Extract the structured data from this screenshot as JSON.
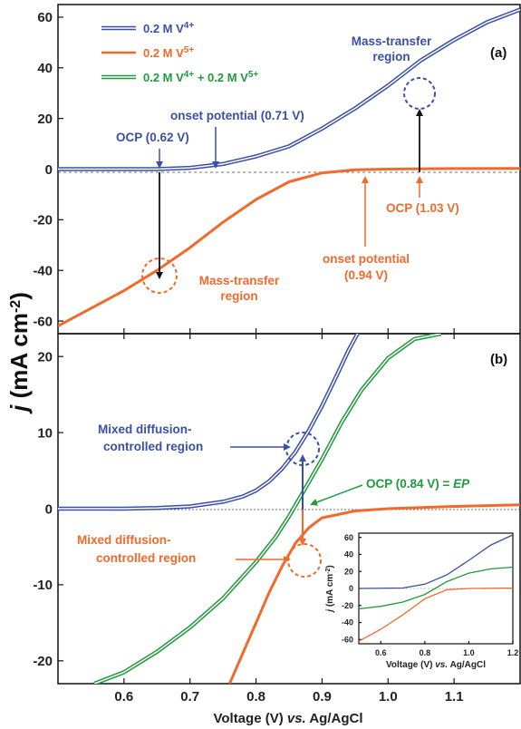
{
  "colors": {
    "v4": "#3a4fa8",
    "v5": "#f06a2c",
    "mix": "#1f9a3c",
    "axis": "#111111",
    "arrow": "#111111"
  },
  "y_axis_label_j": "j",
  "y_axis_label_unit": " (mA cm",
  "y_axis_label_exp": "-2",
  "y_axis_label_close": ")",
  "x_axis_label_pre": "Voltage (V) ",
  "x_axis_label_vs": "vs.",
  "x_axis_label_post": " Ag/AgCl",
  "legend": [
    {
      "label": "0.2 M V",
      "sup": "4+",
      "color": "v4"
    },
    {
      "label": "0.2 M V",
      "sup": "5+",
      "color": "v5"
    },
    {
      "label": "0.2 M V",
      "sup": "4+",
      "mid": " + 0.2 M V",
      "sup2": "5+",
      "color": "mix"
    }
  ],
  "annotations_a": {
    "panel": "(a)",
    "mass_transfer_top_1": "Mass-transfer",
    "mass_transfer_top_2": "region",
    "onset_v4": "onset potential (0.71 V)",
    "ocp_v4": "OCP (0.62 V)",
    "ocp_v5": "OCP (1.03 V)",
    "onset_v5_1": "onset potential",
    "onset_v5_2": "(0.94 V)",
    "mass_transfer_bot_1": "Mass-transfer",
    "mass_transfer_bot_2": "region"
  },
  "annotations_b": {
    "panel": "(b)",
    "mixed_top_1": "Mixed diffusion-",
    "mixed_top_2": "controlled region",
    "ocp_ep_pre": "OCP (0.84 V) = ",
    "ocp_ep_ep": "EP",
    "mixed_bot_1": "Mixed diffusion-",
    "mixed_bot_2": "controlled region"
  },
  "inset_labels": {
    "ylabel_j": "j",
    "ylabel_rest": " (mA cm",
    "ylabel_exp": "-2",
    "ylabel_close": ")",
    "xlabel_pre": "Voltage (V) ",
    "xlabel_vs": "vs.",
    "xlabel_post": " Ag/AgCl"
  },
  "chart_data": [
    {
      "type": "line",
      "panel": "a",
      "xlim": [
        0.5,
        1.2
      ],
      "ylim": [
        -65,
        65
      ],
      "xticks": [
        0.6,
        0.7,
        0.8,
        0.9,
        1.0,
        1.1
      ],
      "yticks": [
        -60,
        -40,
        -20,
        0,
        20,
        40,
        60
      ],
      "ytick_labels": [
        "-60",
        "-40",
        "-20",
        "0",
        "20",
        "40",
        "60"
      ],
      "series": [
        {
          "name": "0.2 M V4+",
          "color": "v4",
          "double": true,
          "x": [
            0.5,
            0.6,
            0.65,
            0.7,
            0.75,
            0.8,
            0.85,
            0.9,
            0.95,
            1.0,
            1.05,
            1.1,
            1.15,
            1.2
          ],
          "y": [
            0,
            0,
            0,
            0.5,
            2,
            5,
            9,
            16,
            24,
            33,
            43,
            51,
            58,
            63
          ]
        },
        {
          "name": "0.2 M V5+",
          "color": "v5",
          "double": false,
          "x": [
            0.5,
            0.55,
            0.6,
            0.65,
            0.7,
            0.75,
            0.8,
            0.85,
            0.9,
            0.95,
            1.0,
            1.1,
            1.2
          ],
          "y": [
            -62,
            -55,
            -48,
            -40,
            -31,
            -21,
            -12,
            -5,
            -1.5,
            -0.3,
            0,
            0.2,
            0.3
          ]
        }
      ]
    },
    {
      "type": "line",
      "panel": "b",
      "xlim": [
        0.5,
        1.2
      ],
      "ylim": [
        -23,
        23
      ],
      "xticks": [
        0.6,
        0.7,
        0.8,
        0.9,
        1.0,
        1.1
      ],
      "xtick_labels": [
        "0.6",
        "0.7",
        "0.8",
        "0.9",
        "1.0",
        "1.1"
      ],
      "yticks": [
        -20,
        -10,
        0,
        10,
        20
      ],
      "ytick_labels": [
        "-20",
        "-10",
        "0",
        "10",
        "20"
      ],
      "series": [
        {
          "name": "0.2 M V4+",
          "color": "v4",
          "double": true,
          "x": [
            0.5,
            0.6,
            0.65,
            0.7,
            0.75,
            0.78,
            0.8,
            0.82,
            0.84,
            0.86,
            0.88,
            0.9,
            0.92,
            0.94,
            0.96
          ],
          "y": [
            0,
            0,
            0.1,
            0.3,
            0.9,
            1.6,
            2.4,
            3.6,
            5.3,
            7.5,
            10.3,
            13.5,
            17.1,
            20.8,
            24
          ]
        },
        {
          "name": "0.2 M V4+ + 0.2 M V5+",
          "color": "mix",
          "double": true,
          "x": [
            0.555,
            0.6,
            0.65,
            0.7,
            0.75,
            0.8,
            0.83,
            0.85,
            0.87,
            0.9,
            0.93,
            0.96,
            1.0,
            1.04,
            1.08
          ],
          "y": [
            -23,
            -21.5,
            -18.8,
            -15.6,
            -11.8,
            -7.0,
            -3.7,
            -1.0,
            2.0,
            6.5,
            11.4,
            15.6,
            19.8,
            22.3,
            23
          ]
        },
        {
          "name": "0.2 M V5+",
          "color": "v5",
          "double": false,
          "x": [
            0.76,
            0.78,
            0.8,
            0.82,
            0.84,
            0.86,
            0.88,
            0.9,
            0.95,
            1.0,
            1.1,
            1.2
          ],
          "y": [
            -23,
            -19,
            -15,
            -11,
            -7.5,
            -4.5,
            -2.5,
            -1.2,
            -0.3,
            0,
            0.3,
            0.5
          ]
        }
      ],
      "inset": {
        "xlim": [
          0.5,
          1.2
        ],
        "ylim": [
          -65,
          65
        ],
        "xticks": [
          0.6,
          0.8,
          1.0,
          1.2
        ],
        "xtick_labels": [
          "0.6",
          "0.8",
          "1.0",
          "1.2"
        ],
        "yticks": [
          -60,
          -40,
          -20,
          0,
          20,
          40,
          60
        ],
        "ytick_labels": [
          "-60",
          "-40",
          "-20",
          "0",
          "20",
          "40",
          "60"
        ],
        "series": [
          {
            "color": "v4",
            "x": [
              0.5,
              0.7,
              0.8,
              0.9,
              1.0,
              1.1,
              1.2
            ],
            "y": [
              0,
              0.5,
              5,
              16,
              33,
              51,
              63
            ]
          },
          {
            "color": "mix",
            "x": [
              0.5,
              0.6,
              0.7,
              0.8,
              0.9,
              1.0,
              1.1,
              1.2
            ],
            "y": [
              -24,
              -21,
              -16,
              -7,
              8,
              18,
              23,
              25
            ]
          },
          {
            "color": "v5",
            "x": [
              0.5,
              0.6,
              0.7,
              0.8,
              0.9,
              1.0,
              1.1,
              1.2
            ],
            "y": [
              -62,
              -48,
              -31,
              -12,
              -1.5,
              0,
              0.2,
              0.3
            ]
          }
        ]
      }
    }
  ]
}
